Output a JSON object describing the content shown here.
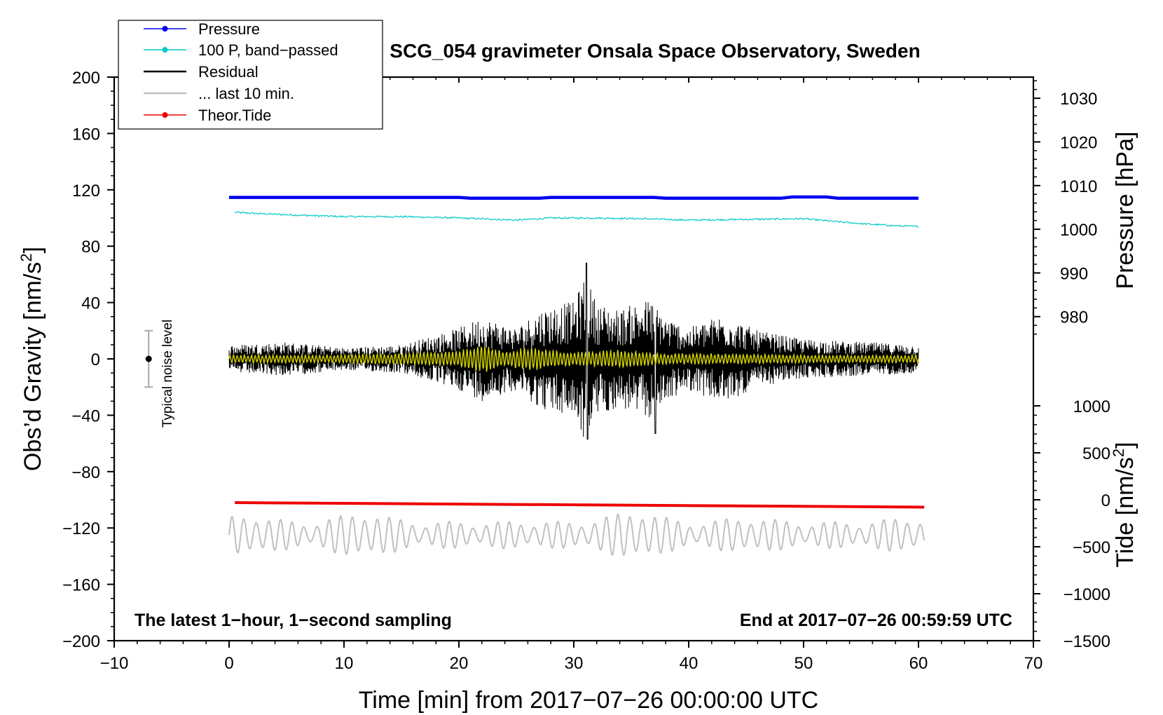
{
  "chart_data": {
    "type": "line",
    "title": "SCG_054 gravimeter Onsala Space Observatory, Sweden",
    "xlabel": "Time [min] from 2017−07−26 00:00:00 UTC",
    "ylabel_left": "Obs’d Gravity [nm/s",
    "ylabel_pressure": "Pressure [hPa]",
    "ylabel_tide": "Tide [nm/s",
    "superscript": "2",
    "close_bracket": "]",
    "note_left": "The latest 1−hour, 1−second sampling",
    "note_right": "End at 2017−07−26 00:59:59 UTC",
    "noise_label": "Typical noise level",
    "xlim": [
      -10,
      70
    ],
    "ylim_left": [
      -200,
      200
    ],
    "x_ticks": [
      -10,
      0,
      10,
      20,
      30,
      40,
      50,
      60,
      70
    ],
    "x_tick_labels": [
      "−10",
      "0",
      "10",
      "20",
      "30",
      "40",
      "50",
      "60",
      "70"
    ],
    "y_ticks_left": [
      200,
      160,
      120,
      80,
      40,
      0,
      -40,
      -80,
      -120,
      -160,
      -200
    ],
    "y_tick_labels_left": [
      "200",
      "160",
      "120",
      "80",
      "40",
      "0",
      "−40",
      "−80",
      "−120",
      "−160",
      "−200"
    ],
    "pressure_axis": {
      "ticks": [
        1030,
        1020,
        1010,
        1000,
        990,
        980
      ],
      "tick_labels": [
        "1030",
        "1020",
        "1010",
        "1000",
        "990",
        "980"
      ],
      "gravity_equiv_at_1030": 185,
      "gravity_per_hPa": 3.1
    },
    "tide_axis": {
      "ticks": [
        1000,
        500,
        0,
        -500,
        -1000,
        -1500
      ],
      "tick_labels": [
        "1000",
        "500",
        "0",
        "−500",
        "−1000",
        "−1500"
      ],
      "gravity_equiv_at_0": -100,
      "gravity_per_unit": 0.06667
    },
    "noise_bar": {
      "x": -7,
      "center": 0,
      "half_range": 20
    },
    "legend": {
      "position": "top-left",
      "entries": [
        {
          "label": "Pressure",
          "color": "#0000ee",
          "marker": true
        },
        {
          "label": "100 P, band−passed",
          "color": "#00c8c8",
          "marker": true
        },
        {
          "label": "Residual",
          "color": "#000000",
          "marker": false
        },
        {
          "label": "... last 10 min.",
          "color": "#c0c0c0",
          "marker": false
        },
        {
          "label": "Theor.Tide",
          "color": "#ee0000",
          "marker": true
        }
      ]
    },
    "series": [
      {
        "name": "Pressure",
        "color": "#0000ee",
        "units": "hPa",
        "x": [
          0,
          10,
          20,
          21,
          27,
          28,
          37,
          38,
          48,
          49,
          52,
          53,
          60
        ],
        "values": [
          1007.3,
          1007.3,
          1007.3,
          1007.1,
          1007.1,
          1007.3,
          1007.3,
          1007.1,
          1007.1,
          1007.4,
          1007.4,
          1007.1,
          1007.1
        ]
      },
      {
        "name": "100 P, band-passed",
        "color": "#00c8c8",
        "units": "nm/s2",
        "x": [
          0.5,
          3,
          6,
          10,
          15,
          20,
          25,
          28,
          32,
          36,
          40,
          45,
          50,
          52,
          55,
          58,
          60
        ],
        "values": [
          104,
          103,
          102,
          101,
          101,
          100,
          98.5,
          100,
          100,
          99.5,
          98.5,
          99,
          99.5,
          98,
          96,
          94.5,
          94
        ]
      },
      {
        "name": "Residual",
        "color": "#000000",
        "units": "nm/s2",
        "x": [
          0,
          5,
          10,
          15,
          20,
          22,
          25,
          27,
          29,
          30,
          31,
          32,
          34,
          36,
          37,
          38,
          40,
          43,
          46,
          50,
          55,
          60
        ],
        "values": [
          10,
          12,
          8,
          10,
          22,
          30,
          22,
          35,
          40,
          40,
          60,
          40,
          35,
          42,
          42,
          30,
          22,
          32,
          20,
          14,
          12,
          10
        ]
      },
      {
        "name": "yellow overlay",
        "color": "#d4d400",
        "units": "nm/s2",
        "x": [
          0,
          10,
          20,
          22,
          24,
          26,
          30,
          34,
          38,
          42,
          50,
          60
        ],
        "values": [
          3,
          3,
          6,
          11,
          6,
          9,
          5,
          7,
          4,
          4,
          3,
          3
        ]
      },
      {
        "name": "Theor.Tide",
        "color": "#ee0000",
        "units": "nm/s2",
        "x": [
          0.5,
          60.5
        ],
        "values": [
          -2,
          -22
        ]
      },
      {
        "name": "... last 10 min.",
        "color": "#c0c0c0",
        "units": "gravity-equiv",
        "x": [
          0,
          60.5
        ],
        "center": -125,
        "amp_low": 7,
        "amp_high": 14
      }
    ]
  }
}
